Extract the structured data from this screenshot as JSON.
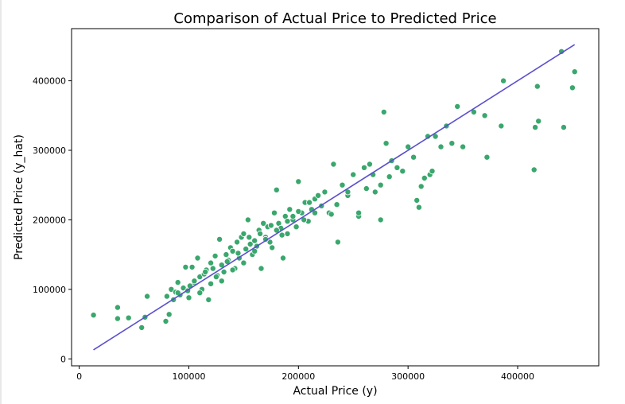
{
  "chart_data": {
    "type": "scatter",
    "title": "Comparison of Actual Price to Predicted Price",
    "xlabel": "Actual Price (y)",
    "ylabel": "Predicted Price (y_hat)",
    "xlim": [
      -7000,
      474000
    ],
    "ylim": [
      -10000,
      475000
    ],
    "xticks": [
      0,
      100000,
      200000,
      300000,
      400000
    ],
    "yticks": [
      0,
      100000,
      200000,
      300000,
      400000
    ],
    "xtick_labels": [
      "0",
      "100000",
      "200000",
      "300000",
      "400000"
    ],
    "ytick_labels": [
      "0",
      "100000",
      "200000",
      "300000",
      "400000"
    ],
    "grid": false,
    "point_color": "#3aa76d",
    "line_color": "#5a4fcf",
    "reference_line": {
      "x": [
        13000,
        452000
      ],
      "y": [
        13000,
        452000
      ]
    },
    "points": {
      "x": [
        13000,
        35000,
        35000,
        45000,
        57000,
        60000,
        62000,
        79000,
        80000,
        82000,
        84000,
        86000,
        88000,
        90000,
        92000,
        95000,
        97000,
        99000,
        101000,
        103000,
        105000,
        108000,
        110000,
        112000,
        114000,
        116000,
        118000,
        120000,
        122000,
        124000,
        126000,
        128000,
        130000,
        132000,
        134000,
        136000,
        138000,
        140000,
        142000,
        144000,
        146000,
        148000,
        150000,
        152000,
        154000,
        156000,
        158000,
        160000,
        162000,
        164000,
        166000,
        168000,
        170000,
        172000,
        174000,
        176000,
        178000,
        180000,
        182000,
        184000,
        186000,
        188000,
        190000,
        192000,
        195000,
        198000,
        200000,
        203000,
        206000,
        209000,
        212000,
        215000,
        218000,
        221000,
        224000,
        228000,
        232000,
        236000,
        240000,
        245000,
        250000,
        255000,
        260000,
        265000,
        270000,
        275000,
        278000,
        280000,
        285000,
        290000,
        295000,
        300000,
        305000,
        310000,
        315000,
        318000,
        320000,
        322000,
        325000,
        330000,
        335000,
        340000,
        345000,
        350000,
        360000,
        370000,
        372000,
        385000,
        387000,
        415000,
        416000,
        418000,
        419000,
        440000,
        442000,
        450000,
        452000,
        135000,
        145000,
        155000,
        165000,
        175000,
        185000,
        195000,
        205000,
        215000,
        125000,
        115000,
        105000,
        140000,
        150000,
        160000,
        170000,
        180000,
        190000,
        200000,
        210000,
        130000,
        120000,
        110000,
        100000,
        90000,
        230000,
        235000,
        245000,
        255000,
        262000,
        268000,
        275000,
        283000,
        308000,
        312000
      ],
      "y": [
        63000,
        74000,
        58000,
        59000,
        45000,
        60000,
        90000,
        54000,
        90000,
        64000,
        100000,
        85000,
        96000,
        110000,
        92000,
        102000,
        132000,
        98000,
        105000,
        132000,
        110000,
        145000,
        118000,
        100000,
        122000,
        128000,
        85000,
        138000,
        130000,
        148000,
        120000,
        172000,
        135000,
        125000,
        150000,
        142000,
        160000,
        155000,
        130000,
        168000,
        145000,
        175000,
        180000,
        158000,
        200000,
        165000,
        150000,
        170000,
        162000,
        185000,
        130000,
        195000,
        175000,
        190000,
        168000,
        160000,
        210000,
        243000,
        195000,
        188000,
        145000,
        205000,
        180000,
        215000,
        200000,
        190000,
        255000,
        210000,
        225000,
        198000,
        215000,
        230000,
        235000,
        220000,
        240000,
        210000,
        280000,
        168000,
        250000,
        235000,
        265000,
        205000,
        275000,
        280000,
        240000,
        250000,
        355000,
        310000,
        285000,
        275000,
        270000,
        305000,
        290000,
        218000,
        260000,
        320000,
        265000,
        270000,
        320000,
        305000,
        335000,
        310000,
        363000,
        305000,
        355000,
        350000,
        290000,
        335000,
        400000,
        272000,
        333000,
        392000,
        342000,
        442000,
        333000,
        390000,
        413000,
        140000,
        152000,
        175000,
        180000,
        192000,
        178000,
        205000,
        200000,
        210000,
        118000,
        125000,
        112000,
        128000,
        138000,
        155000,
        172000,
        185000,
        198000,
        212000,
        225000,
        112000,
        108000,
        95000,
        88000,
        95000,
        208000,
        222000,
        240000,
        210000,
        245000,
        265000,
        200000,
        262000,
        228000,
        248000
      ]
    }
  }
}
